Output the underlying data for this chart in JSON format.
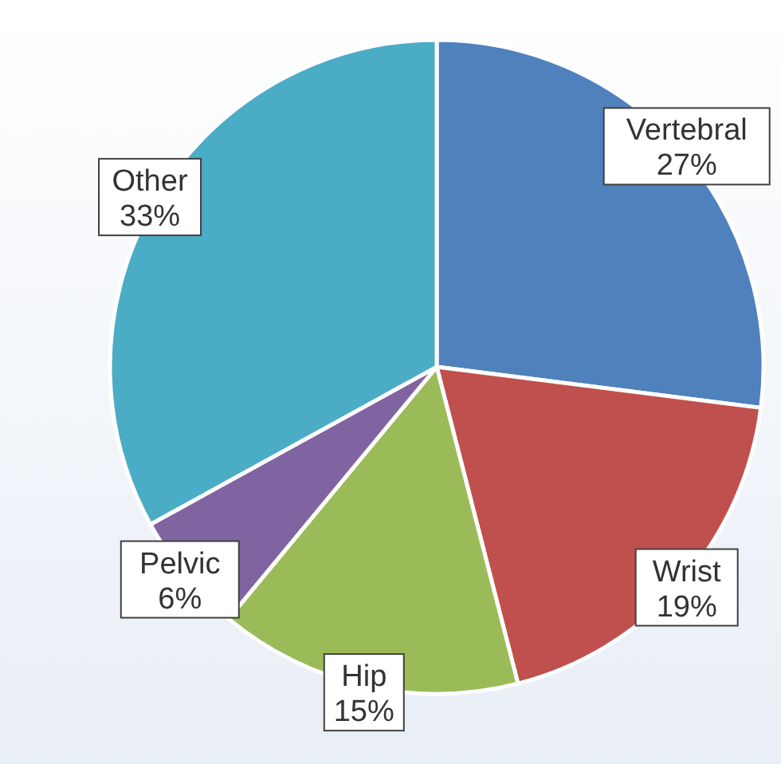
{
  "chart_data": {
    "type": "pie",
    "categories": [
      "Vertebral",
      "Wrist",
      "Hip",
      "Pelvic",
      "Other"
    ],
    "values": [
      27,
      19,
      15,
      6,
      33
    ],
    "colors": [
      "#4f81bd",
      "#c0504d",
      "#9bbb59",
      "#8064a2",
      "#4bacc6"
    ],
    "value_labels": [
      "27%",
      "19%",
      "15%",
      "6%",
      "33%"
    ]
  }
}
